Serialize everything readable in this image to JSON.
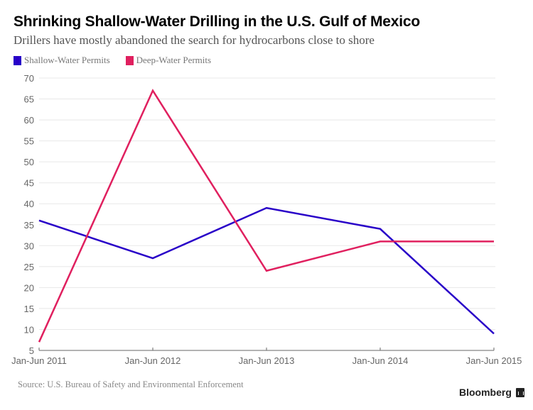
{
  "header": {
    "title": "Shrinking Shallow-Water Drilling in the U.S. Gulf of Mexico",
    "subtitle": "Drillers have mostly abandoned the search for hydrocarbons close to shore"
  },
  "legend": [
    {
      "label": "Shallow-Water Permits",
      "color": "#2800c8"
    },
    {
      "label": "Deep-Water Permits",
      "color": "#e0205f"
    }
  ],
  "footer": {
    "source": "Source: U.S. Bureau of Safety and Environmental Enforcement",
    "brand": "Bloomberg"
  },
  "chart_data": {
    "type": "line",
    "title": "Shrinking Shallow-Water Drilling in the U.S. Gulf of Mexico",
    "subtitle": "Drillers have mostly abandoned the search for hydrocarbons close to shore",
    "xlabel": "",
    "ylabel": "",
    "categories": [
      "Jan-Jun 2011",
      "Jan-Jun 2012",
      "Jan-Jun 2013",
      "Jan-Jun 2014",
      "Jan-Jun 2015"
    ],
    "series": [
      {
        "name": "Shallow-Water Permits",
        "color": "#2800c8",
        "values": [
          36,
          27,
          39,
          34,
          9
        ]
      },
      {
        "name": "Deep-Water Permits",
        "color": "#e0205f",
        "values": [
          7,
          67,
          24,
          31,
          31
        ]
      }
    ],
    "ylim": [
      5,
      70
    ],
    "yticks": [
      5,
      10,
      15,
      20,
      25,
      30,
      35,
      40,
      45,
      50,
      55,
      60,
      65,
      70
    ],
    "grid": true,
    "legend_position": "top-left"
  }
}
